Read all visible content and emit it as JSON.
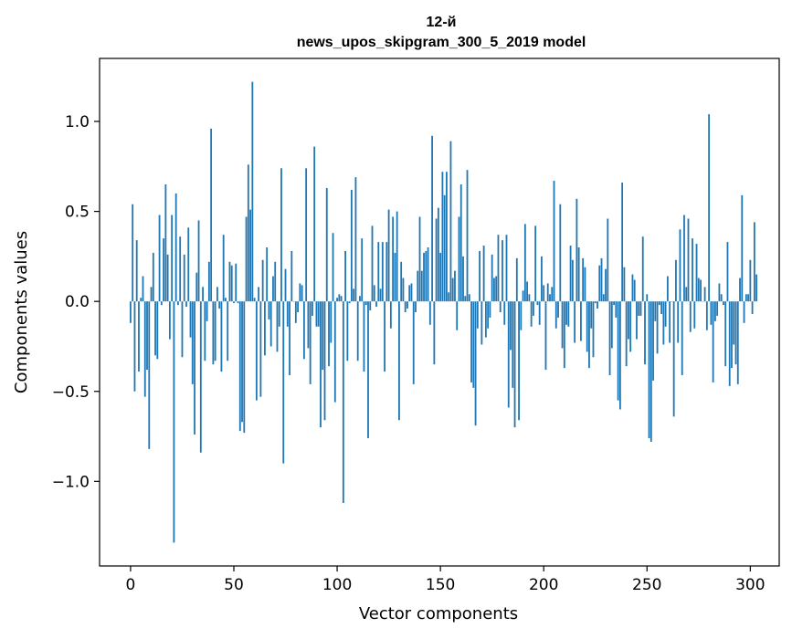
{
  "chart_data": {
    "type": "bar",
    "title_line1": "12-й",
    "title_line2": "news_upos_skipgram_300_5_2019 model",
    "xlabel": "Vector components",
    "ylabel": "Components values",
    "xlim": [
      -15,
      314
    ],
    "ylim": [
      -1.47,
      1.35
    ],
    "xticks": [
      0,
      50,
      100,
      150,
      200,
      250,
      300
    ],
    "xtick_labels": [
      "0",
      "50",
      "100",
      "150",
      "200",
      "250",
      "300"
    ],
    "yticks": [
      -1.0,
      -0.5,
      0.0,
      0.5,
      1.0
    ],
    "ytick_labels": [
      "−1.0",
      "−0.5",
      "0.0",
      "0.5",
      "1.0"
    ],
    "grid": false,
    "bar_color": "#1f77b4",
    "values": [
      -0.12,
      0.54,
      -0.5,
      0.34,
      -0.39,
      0.02,
      0.14,
      -0.53,
      -0.38,
      -0.82,
      0.08,
      0.27,
      -0.3,
      -0.32,
      0.48,
      -0.02,
      0.35,
      0.65,
      0.26,
      -0.21,
      0.48,
      -1.34,
      0.6,
      -0.02,
      0.36,
      -0.31,
      0.26,
      -0.03,
      0.41,
      -0.2,
      -0.46,
      -0.74,
      0.16,
      0.45,
      -0.84,
      0.08,
      -0.33,
      -0.11,
      0.22,
      0.96,
      -0.35,
      -0.33,
      0.08,
      -0.04,
      -0.39,
      0.37,
      0.02,
      -0.33,
      0.22,
      0.2,
      -0.01,
      0.21,
      -0.01,
      -0.72,
      -0.67,
      -0.73,
      0.47,
      0.76,
      0.51,
      1.22,
      0.02,
      -0.55,
      0.08,
      -0.53,
      0.23,
      -0.3,
      0.3,
      -0.1,
      -0.25,
      0.14,
      0.22,
      -0.28,
      -0.14,
      0.74,
      -0.9,
      0.18,
      -0.14,
      -0.41,
      0.28,
      0.0,
      -0.12,
      -0.06,
      0.1,
      0.09,
      -0.32,
      0.74,
      -0.26,
      -0.46,
      -0.08,
      0.86,
      -0.14,
      -0.14,
      -0.7,
      -0.38,
      -0.66,
      0.63,
      -0.36,
      -0.23,
      0.38,
      -0.56,
      0.02,
      0.04,
      0.03,
      -1.12,
      0.28,
      -0.33,
      -0.01,
      0.62,
      0.07,
      0.69,
      -0.33,
      0.03,
      0.35,
      -0.39,
      -0.02,
      -0.76,
      -0.05,
      0.42,
      0.09,
      -0.03,
      0.33,
      0.07,
      0.33,
      -0.39,
      0.33,
      0.51,
      -0.15,
      0.47,
      0.27,
      0.5,
      -0.66,
      0.22,
      0.13,
      -0.06,
      -0.04,
      0.09,
      0.1,
      -0.46,
      -0.06,
      0.17,
      0.47,
      0.17,
      0.27,
      0.28,
      0.3,
      -0.13,
      0.92,
      -0.35,
      0.46,
      0.52,
      0.27,
      0.72,
      0.59,
      0.72,
      0.05,
      0.89,
      0.13,
      0.17,
      -0.16,
      0.47,
      0.65,
      0.25,
      0.03,
      0.73,
      0.04,
      -0.45,
      -0.48,
      -0.69,
      -0.15,
      0.28,
      -0.24,
      0.31,
      -0.2,
      -0.15,
      -0.09,
      0.26,
      0.13,
      0.14,
      0.37,
      -0.06,
      0.34,
      -0.13,
      0.37,
      -0.59,
      -0.27,
      -0.48,
      -0.7,
      0.24,
      -0.66,
      -0.16,
      0.06,
      0.43,
      0.11,
      0.04,
      -0.14,
      -0.08,
      0.42,
      -0.02,
      -0.13,
      0.25,
      0.09,
      -0.38,
      0.1,
      0.04,
      0.08,
      0.67,
      -0.15,
      -0.09,
      0.54,
      -0.26,
      -0.37,
      -0.13,
      -0.14,
      0.31,
      0.23,
      -0.23,
      0.57,
      0.3,
      -0.22,
      0.24,
      0.19,
      -0.28,
      -0.37,
      -0.15,
      -0.31,
      -0.01,
      -0.04,
      0.2,
      0.24,
      0.04,
      0.18,
      0.46,
      -0.41,
      -0.26,
      -0.02,
      -0.09,
      -0.55,
      -0.6,
      0.66,
      0.19,
      -0.36,
      -0.21,
      -0.28,
      0.15,
      0.12,
      -0.21,
      -0.08,
      -0.08,
      0.36,
      -0.35,
      0.04,
      -0.76,
      -0.78,
      -0.44,
      -0.11,
      -0.29,
      -0.02,
      -0.07,
      -0.24,
      -0.14,
      0.14,
      -0.23,
      0.0,
      -0.64,
      0.23,
      -0.23,
      0.4,
      -0.41,
      0.48,
      0.08,
      0.46,
      -0.17,
      0.35,
      -0.15,
      0.32,
      0.13,
      0.12,
      0.0,
      0.08,
      -0.16,
      1.04,
      -0.13,
      -0.45,
      -0.11,
      -0.08,
      0.1,
      0.04,
      -0.02,
      -0.36,
      0.33,
      -0.47,
      -0.37,
      -0.24,
      -0.35,
      -0.46,
      0.13,
      0.59,
      -0.12,
      0.04,
      0.04,
      0.23,
      -0.07,
      0.44,
      0.15
    ]
  }
}
